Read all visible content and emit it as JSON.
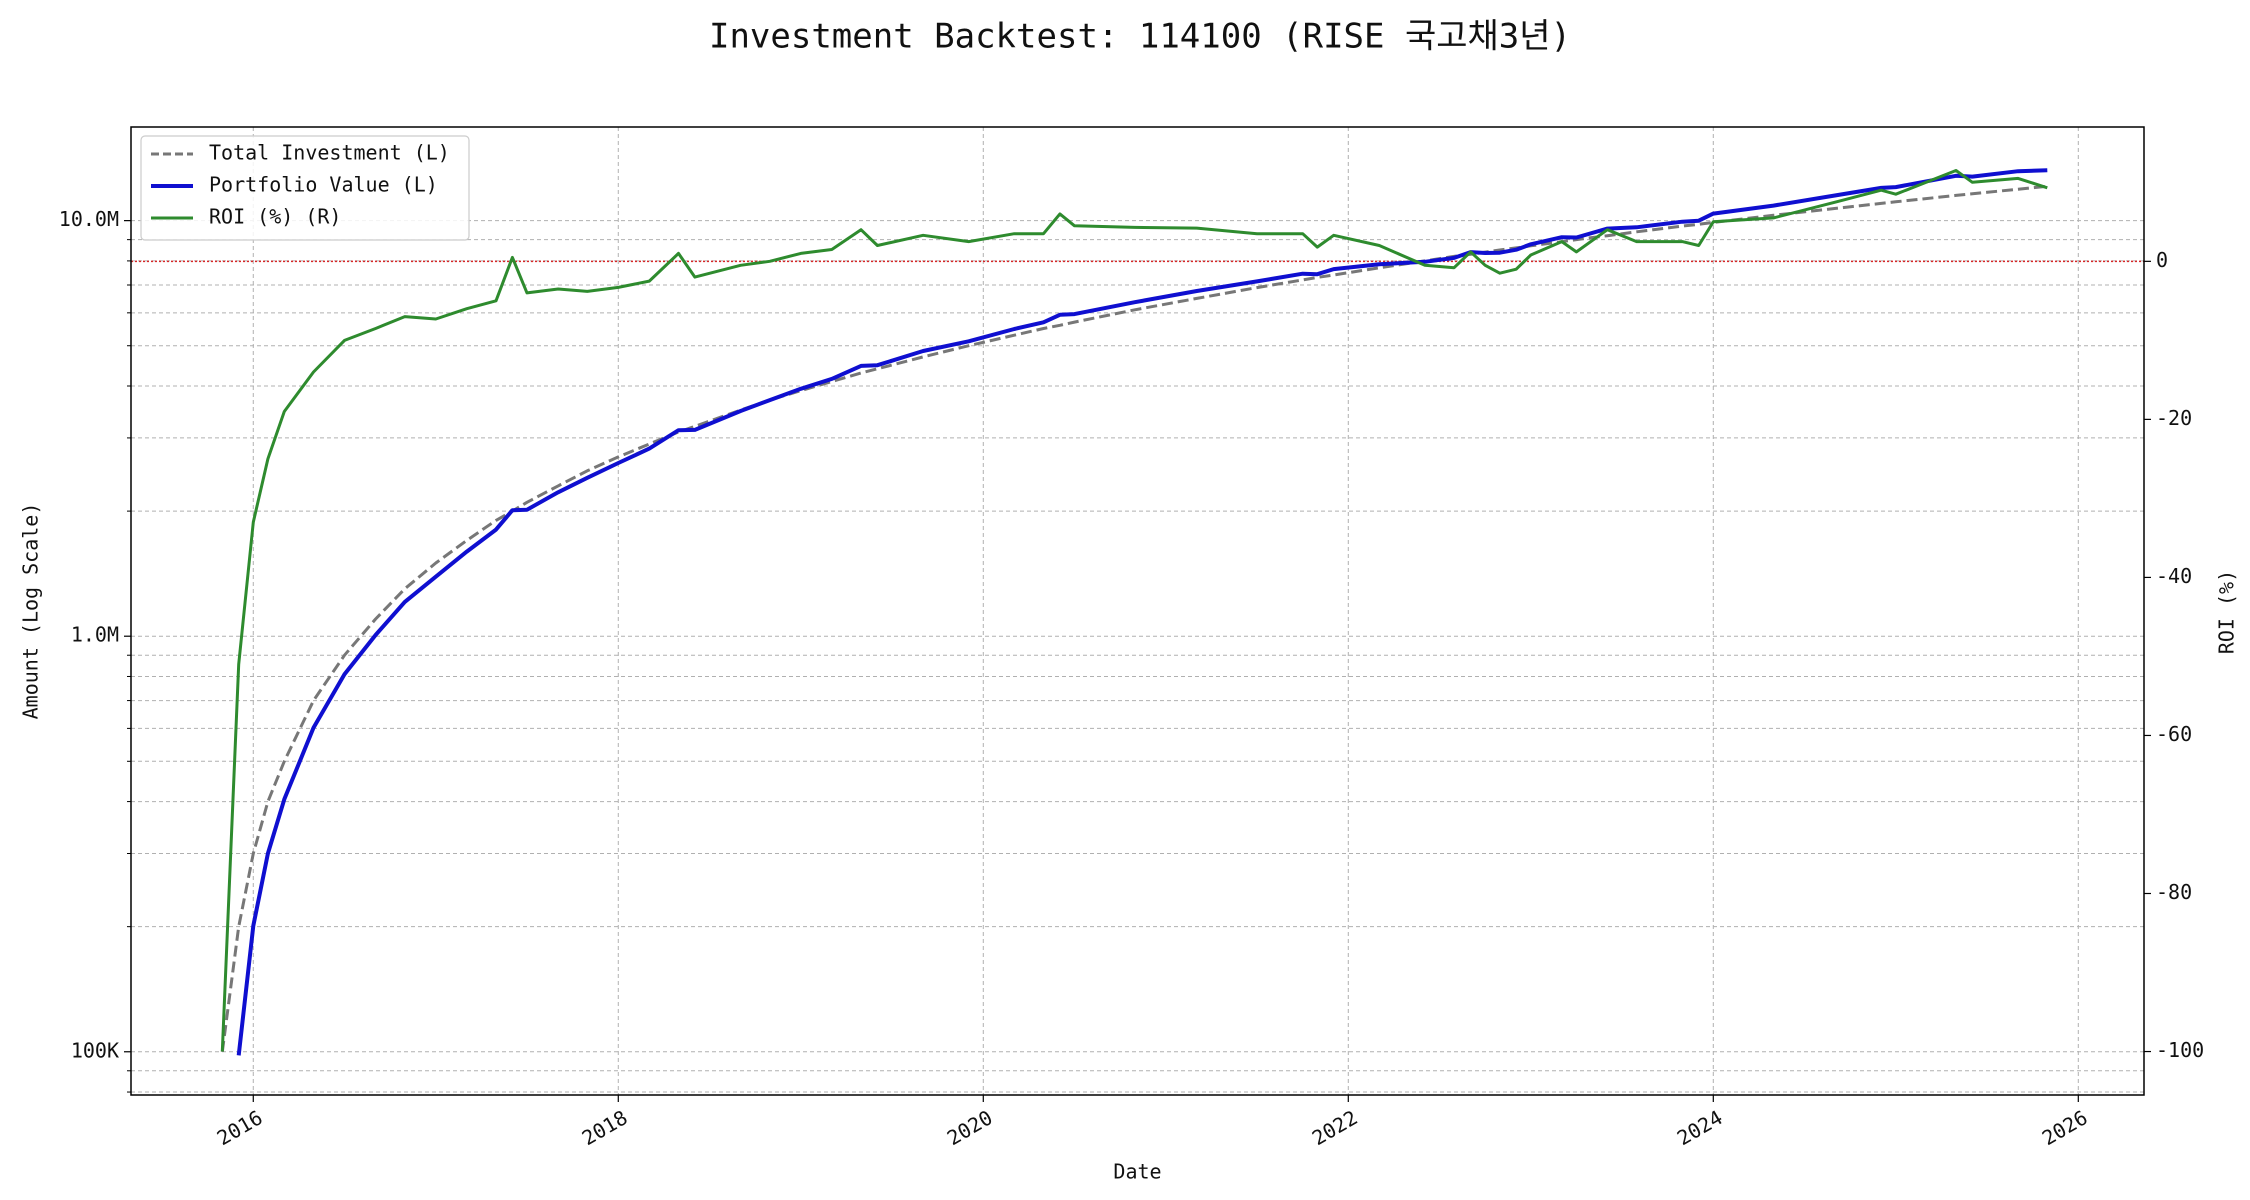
{
  "chart_data": {
    "type": "line",
    "title": "Investment Backtest: 114100 (RISE 국고채3년)",
    "xlabel": "Date",
    "ylabel": "Amount (Log Scale)",
    "y2label": "ROI (%)",
    "ylabel_color": "#1a1acc",
    "y2label_color": "#2a8a2a",
    "ylog": true,
    "grid": true,
    "legend": "upper left",
    "xlim": [
      2015.33,
      2026.36
    ],
    "xticks": [
      2016,
      2018,
      2020,
      2022,
      2024,
      2026
    ],
    "ylim": [
      78700,
      16800000
    ],
    "yticks": [
      {
        "value": 100000,
        "label": "100K"
      },
      {
        "value": 1000000,
        "label": "1.0M"
      },
      {
        "value": 10000000,
        "label": "10.0M"
      }
    ],
    "yminorticks": [
      80000,
      90000,
      200000,
      300000,
      400000,
      500000,
      600000,
      700000,
      800000,
      900000,
      2000000,
      3000000,
      4000000,
      5000000,
      6000000,
      7000000,
      8000000,
      9000000
    ],
    "y2lim": [
      -105.5,
      17
    ],
    "y2ticks": [
      -100,
      -80,
      -60,
      -40,
      -20,
      0
    ],
    "hline": {
      "axis": "y2",
      "value": 0,
      "color": "#d62728"
    },
    "x": [
      2015.83,
      2015.92,
      2016.0,
      2016.08,
      2016.17,
      2016.33,
      2016.5,
      2016.67,
      2016.83,
      2017.0,
      2017.17,
      2017.33,
      2017.42,
      2017.5,
      2017.67,
      2017.83,
      2018.0,
      2018.17,
      2018.33,
      2018.42,
      2018.67,
      2018.83,
      2019.0,
      2019.17,
      2019.33,
      2019.42,
      2019.67,
      2019.92,
      2020.17,
      2020.33,
      2020.42,
      2020.5,
      2020.83,
      2021.17,
      2021.5,
      2021.75,
      2021.83,
      2021.92,
      2022.17,
      2022.42,
      2022.58,
      2022.67,
      2022.75,
      2022.83,
      2022.92,
      2023.0,
      2023.17,
      2023.25,
      2023.42,
      2023.58,
      2023.83,
      2023.92,
      2024.0,
      2024.33,
      2024.67,
      2024.92,
      2025.0,
      2025.33,
      2025.42,
      2025.67,
      2025.83
    ],
    "series": [
      {
        "name": "Total Investment (L)",
        "color": "#777777",
        "linestyle": "dashed",
        "axis": "y",
        "values": [
          100000,
          200000,
          300000,
          400000,
          500000,
          700000,
          900000,
          1100000,
          1300000,
          1500000,
          1700000,
          1900000,
          2000000,
          2100000,
          2300000,
          2500000,
          2700000,
          2900000,
          3100000,
          3200000,
          3500000,
          3700000,
          3900000,
          4100000,
          4300000,
          4400000,
          4700000,
          5000000,
          5300000,
          5500000,
          5600000,
          5700000,
          6100000,
          6500000,
          6900000,
          7200000,
          7300000,
          7400000,
          7700000,
          8000000,
          8200000,
          8300000,
          8400000,
          8500000,
          8600000,
          8700000,
          8900000,
          9000000,
          9200000,
          9400000,
          9700000,
          9800000,
          9900000,
          10300000,
          10700000,
          11000000,
          11100000,
          11500000,
          11600000,
          11900000,
          12100000
        ]
      },
      {
        "name": "Portfolio Value (L)",
        "color": "#0f0fd0",
        "linestyle": "solid",
        "axis": "y",
        "values": [
          null,
          98000,
          201000,
          300000,
          405000,
          602000,
          810000,
          1006500,
          1209000,
          1390500,
          1598000,
          1805000,
          2010000,
          2016000,
          2219500,
          2405000,
          2610900,
          2827500,
          3131000,
          3136000,
          3482500,
          3700000,
          3939000,
          4161500,
          4472000,
          4488000,
          4855100,
          5125000,
          5485500,
          5692500,
          5936000,
          5956500,
          6362300,
          6773000,
          7141500,
          7452000,
          7431400,
          7644200,
          7854000,
          7960000,
          8134400,
          8399600,
          8358000,
          8372500,
          8514000,
          8769600,
          9122500,
          9108000,
          9568000,
          9635000,
          9942500,
          9996000,
          10395000,
          10866500,
          11502500,
          11990000,
          12043500,
          12822500,
          12760000,
          13149500,
          13225300
        ]
      },
      {
        "name": "ROI (%) (R)",
        "color": "#2e8b2e",
        "linestyle": "solid",
        "axis": "y2",
        "values": [
          -100,
          -51,
          -33,
          -25,
          -19,
          -14,
          -10,
          -8.5,
          -7,
          -7.3,
          -6,
          -5,
          0.5,
          -4,
          -3.5,
          -3.8,
          -3.3,
          -2.5,
          1,
          -2,
          -0.5,
          0,
          1,
          1.5,
          4,
          2,
          3.3,
          2.5,
          3.5,
          3.5,
          6,
          4.5,
          4.3,
          4.2,
          3.5,
          3.5,
          1.8,
          3.3,
          2,
          -0.5,
          -0.8,
          1.2,
          -0.5,
          -1.5,
          -1,
          0.8,
          2.5,
          1.2,
          4,
          2.5,
          2.5,
          2,
          5,
          5.5,
          7.5,
          9,
          8.5,
          11.5,
          10,
          10.5,
          9.3
        ]
      }
    ]
  }
}
